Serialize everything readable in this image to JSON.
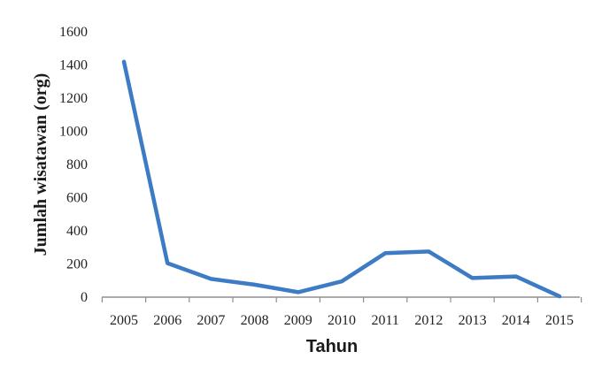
{
  "chart_data": {
    "type": "line",
    "xlabel": "Tahun",
    "ylabel": "Jumlah wisatawan (org)",
    "x": [
      "2005",
      "2006",
      "2007",
      "2008",
      "2009",
      "2010",
      "2011",
      "2012",
      "2013",
      "2014",
      "2015"
    ],
    "series": [
      {
        "values": [
          1420,
          205,
          110,
          75,
          30,
          95,
          265,
          275,
          115,
          125,
          5
        ]
      }
    ],
    "ylim": [
      0,
      1600
    ],
    "yticks": [
      "0",
      "200",
      "400",
      "600",
      "800",
      "1000",
      "1200",
      "1400",
      "1600"
    ],
    "grid": false,
    "legend": "none",
    "line_color": "#3d7cc4",
    "axis_color": "#8f8f8f"
  }
}
